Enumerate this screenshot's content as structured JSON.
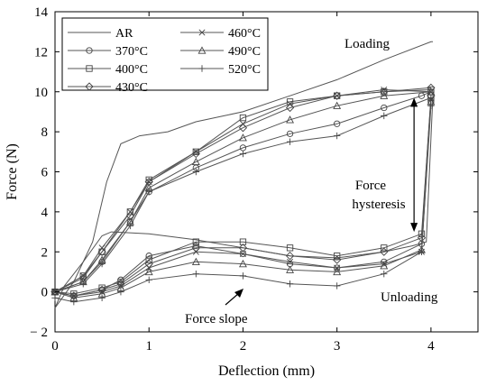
{
  "chart_data": {
    "type": "line",
    "title": "",
    "xlabel": "Deflection (mm)",
    "ylabel": "Force (N)",
    "xlim": [
      0,
      4.5
    ],
    "ylim": [
      -2,
      14
    ],
    "xticks": [
      0,
      1,
      2,
      3,
      4
    ],
    "yticks": [
      -2,
      0,
      2,
      4,
      6,
      8,
      10,
      12,
      14
    ],
    "ytick_labels": [
      "− 2",
      "0",
      "2",
      "4",
      "6",
      "8",
      "10",
      "12",
      "14"
    ],
    "grid": false,
    "legend_position": "top-left",
    "annotations": {
      "loading": "Loading",
      "unloading": "Unloading",
      "hysteresis_line1": "Force",
      "hysteresis_line2": "hysteresis",
      "slope": "Force slope"
    },
    "series": [
      {
        "name": "AR",
        "marker": "none",
        "loading": [
          [
            0,
            -0.8
          ],
          [
            0.2,
            0.5
          ],
          [
            0.4,
            2.5
          ],
          [
            0.55,
            5.5
          ],
          [
            0.7,
            7.4
          ],
          [
            0.9,
            7.8
          ],
          [
            1.2,
            8.0
          ],
          [
            1.5,
            8.5
          ],
          [
            2.0,
            9.0
          ],
          [
            2.5,
            9.8
          ],
          [
            3.0,
            10.6
          ],
          [
            3.5,
            11.6
          ],
          [
            4.0,
            12.5
          ],
          [
            4.02,
            12.5
          ]
        ],
        "unloading": [
          [
            4.02,
            9.8
          ],
          [
            3.95,
            2.5
          ],
          [
            3.8,
            2.3
          ],
          [
            3.5,
            2.0
          ],
          [
            3.0,
            1.7
          ],
          [
            2.5,
            1.8
          ],
          [
            2.0,
            2.2
          ],
          [
            1.5,
            2.6
          ],
          [
            1.0,
            2.9
          ],
          [
            0.6,
            3.0
          ],
          [
            0.5,
            2.8
          ],
          [
            0.3,
            1.5
          ],
          [
            0.1,
            0.3
          ],
          [
            0,
            -0.8
          ]
        ]
      },
      {
        "name": "370°C",
        "marker": "circle",
        "loading": [
          [
            0,
            0
          ],
          [
            0.3,
            0.5
          ],
          [
            0.5,
            1.5
          ],
          [
            0.8,
            3.5
          ],
          [
            1.0,
            5.0
          ],
          [
            1.5,
            6.2
          ],
          [
            2.0,
            7.2
          ],
          [
            2.5,
            7.9
          ],
          [
            3.0,
            8.4
          ],
          [
            3.5,
            9.2
          ],
          [
            3.9,
            9.8
          ],
          [
            4.0,
            10.0
          ]
        ],
        "unloading": [
          [
            4.0,
            9.5
          ],
          [
            3.9,
            2.4
          ],
          [
            3.5,
            1.5
          ],
          [
            3.0,
            1.2
          ],
          [
            2.5,
            1.4
          ],
          [
            2.0,
            1.9
          ],
          [
            1.5,
            2.3
          ],
          [
            1.0,
            1.8
          ],
          [
            0.7,
            0.6
          ],
          [
            0.5,
            0.1
          ],
          [
            0.2,
            -0.2
          ],
          [
            0,
            0
          ]
        ]
      },
      {
        "name": "400°C",
        "marker": "square",
        "loading": [
          [
            0,
            0
          ],
          [
            0.3,
            0.8
          ],
          [
            0.5,
            2.0
          ],
          [
            0.8,
            4.0
          ],
          [
            1.0,
            5.6
          ],
          [
            1.5,
            7.0
          ],
          [
            2.0,
            8.7
          ],
          [
            2.5,
            9.5
          ],
          [
            3.0,
            9.8
          ],
          [
            3.5,
            10.0
          ],
          [
            4.0,
            10.1
          ]
        ],
        "unloading": [
          [
            4.0,
            9.7
          ],
          [
            3.9,
            2.9
          ],
          [
            3.5,
            2.2
          ],
          [
            3.0,
            1.8
          ],
          [
            2.5,
            2.2
          ],
          [
            2.0,
            2.5
          ],
          [
            1.5,
            2.5
          ],
          [
            1.0,
            1.6
          ],
          [
            0.7,
            0.5
          ],
          [
            0.5,
            0.2
          ],
          [
            0.2,
            -0.1
          ],
          [
            0,
            0
          ]
        ]
      },
      {
        "name": "430°C",
        "marker": "diamond",
        "loading": [
          [
            0,
            0
          ],
          [
            0.3,
            0.7
          ],
          [
            0.5,
            2.0
          ],
          [
            0.8,
            3.8
          ],
          [
            1.0,
            5.5
          ],
          [
            1.5,
            6.9
          ],
          [
            2.0,
            8.2
          ],
          [
            2.5,
            9.2
          ],
          [
            3.0,
            9.8
          ],
          [
            3.5,
            10.0
          ],
          [
            4.0,
            10.2
          ]
        ],
        "unloading": [
          [
            4.0,
            9.8
          ],
          [
            3.9,
            2.7
          ],
          [
            3.5,
            2.0
          ],
          [
            3.0,
            1.6
          ],
          [
            2.5,
            1.8
          ],
          [
            2.0,
            2.2
          ],
          [
            1.5,
            2.2
          ],
          [
            1.0,
            1.4
          ],
          [
            0.7,
            0.4
          ],
          [
            0.5,
            0.1
          ],
          [
            0.2,
            -0.2
          ],
          [
            0,
            0
          ]
        ]
      },
      {
        "name": "460°C",
        "marker": "x",
        "loading": [
          [
            0,
            0
          ],
          [
            0.3,
            0.8
          ],
          [
            0.5,
            2.2
          ],
          [
            0.8,
            4.0
          ],
          [
            1.0,
            5.5
          ],
          [
            1.5,
            7.0
          ],
          [
            2.0,
            8.4
          ],
          [
            2.5,
            9.4
          ],
          [
            3.0,
            9.8
          ],
          [
            3.5,
            10.1
          ],
          [
            4.0,
            10.0
          ]
        ],
        "unloading": [
          [
            4.0,
            9.6
          ],
          [
            3.9,
            2.0
          ],
          [
            3.5,
            1.4
          ],
          [
            3.0,
            1.2
          ],
          [
            2.5,
            1.5
          ],
          [
            2.0,
            1.9
          ],
          [
            1.5,
            2.0
          ],
          [
            1.0,
            1.2
          ],
          [
            0.7,
            0.3
          ],
          [
            0.5,
            0.0
          ],
          [
            0.2,
            -0.2
          ],
          [
            0,
            0
          ]
        ]
      },
      {
        "name": "490°C",
        "marker": "triangle",
        "loading": [
          [
            0,
            0
          ],
          [
            0.3,
            0.5
          ],
          [
            0.5,
            1.6
          ],
          [
            0.8,
            3.5
          ],
          [
            1.0,
            5.2
          ],
          [
            1.5,
            6.5
          ],
          [
            2.0,
            7.7
          ],
          [
            2.5,
            8.6
          ],
          [
            3.0,
            9.3
          ],
          [
            3.5,
            9.8
          ],
          [
            4.0,
            10.0
          ]
        ],
        "unloading": [
          [
            4.0,
            9.5
          ],
          [
            3.9,
            2.1
          ],
          [
            3.5,
            1.3
          ],
          [
            3.0,
            1.0
          ],
          [
            2.5,
            1.1
          ],
          [
            2.0,
            1.4
          ],
          [
            1.5,
            1.5
          ],
          [
            1.0,
            1.0
          ],
          [
            0.7,
            0.2
          ],
          [
            0.5,
            -0.1
          ],
          [
            0.2,
            -0.3
          ],
          [
            0,
            0
          ]
        ]
      },
      {
        "name": "520°C",
        "marker": "plus",
        "loading": [
          [
            0,
            0
          ],
          [
            0.3,
            0.4
          ],
          [
            0.5,
            1.4
          ],
          [
            0.8,
            3.3
          ],
          [
            1.0,
            5.0
          ],
          [
            1.5,
            6.0
          ],
          [
            2.0,
            6.9
          ],
          [
            2.5,
            7.5
          ],
          [
            3.0,
            7.8
          ],
          [
            3.5,
            8.8
          ],
          [
            4.0,
            9.7
          ]
        ],
        "unloading": [
          [
            4.0,
            9.3
          ],
          [
            3.9,
            2.0
          ],
          [
            3.5,
            0.9
          ],
          [
            3.0,
            0.3
          ],
          [
            2.5,
            0.4
          ],
          [
            2.0,
            0.8
          ],
          [
            1.5,
            0.9
          ],
          [
            1.0,
            0.6
          ],
          [
            0.7,
            0.0
          ],
          [
            0.5,
            -0.3
          ],
          [
            0.2,
            -0.5
          ],
          [
            0,
            -0.3
          ]
        ]
      }
    ]
  }
}
